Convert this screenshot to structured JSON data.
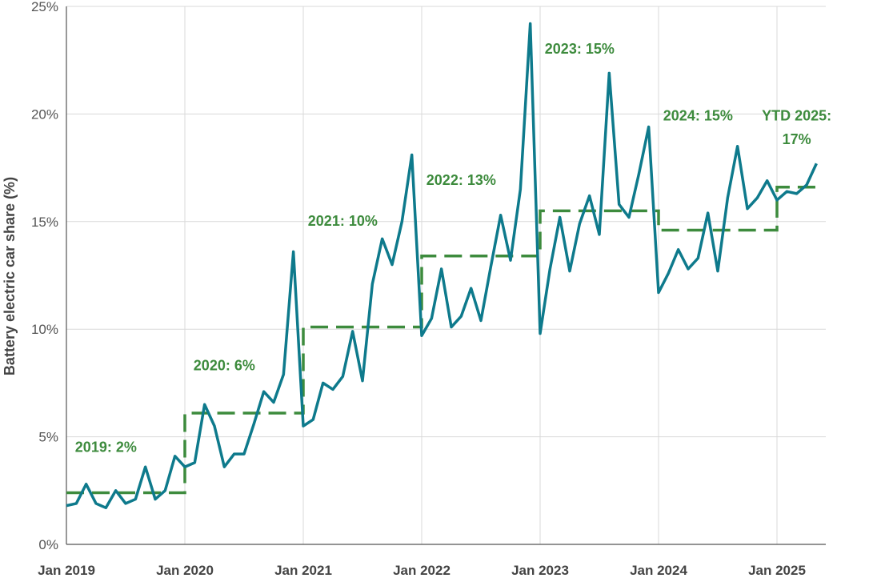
{
  "chart_data": {
    "type": "line",
    "ylabel": "Battery electric car share (%)",
    "xlabel": "",
    "ylim": [
      0,
      25
    ],
    "y_ticks": [
      "0%",
      "5%",
      "10%",
      "15%",
      "20%",
      "25%"
    ],
    "y_tick_values": [
      0,
      5,
      10,
      15,
      20,
      25
    ],
    "x_ticks": [
      "Jan 2019",
      "Jan 2020",
      "Jan 2021",
      "Jan 2022",
      "Jan 2023",
      "Jan 2024",
      "Jan 2025"
    ],
    "x_tick_dates": [
      "2019-01",
      "2020-01",
      "2021-01",
      "2022-01",
      "2023-01",
      "2024-01",
      "2025-01"
    ],
    "xlim": [
      "2019-01",
      "2025-05"
    ],
    "grid": true,
    "series": [
      {
        "color": "#0e7a8c",
        "style": "solid",
        "x": [
          "2019-01",
          "2019-02",
          "2019-03",
          "2019-04",
          "2019-05",
          "2019-06",
          "2019-07",
          "2019-08",
          "2019-09",
          "2019-10",
          "2019-11",
          "2019-12",
          "2020-01",
          "2020-02",
          "2020-03",
          "2020-04",
          "2020-05",
          "2020-06",
          "2020-07",
          "2020-08",
          "2020-09",
          "2020-10",
          "2020-11",
          "2020-12",
          "2021-01",
          "2021-02",
          "2021-03",
          "2021-04",
          "2021-05",
          "2021-06",
          "2021-07",
          "2021-08",
          "2021-09",
          "2021-10",
          "2021-11",
          "2021-12",
          "2022-01",
          "2022-02",
          "2022-03",
          "2022-04",
          "2022-05",
          "2022-06",
          "2022-07",
          "2022-08",
          "2022-09",
          "2022-10",
          "2022-11",
          "2022-12",
          "2023-01",
          "2023-02",
          "2023-03",
          "2023-04",
          "2023-05",
          "2023-06",
          "2023-07",
          "2023-08",
          "2023-09",
          "2023-10",
          "2023-11",
          "2023-12",
          "2024-01",
          "2024-02",
          "2024-03",
          "2024-04",
          "2024-05",
          "2024-06",
          "2024-07",
          "2024-08",
          "2024-09",
          "2024-10",
          "2024-11",
          "2024-12",
          "2025-01",
          "2025-02",
          "2025-03",
          "2025-04",
          "2025-05"
        ],
        "values": [
          1.8,
          1.9,
          2.8,
          1.9,
          1.7,
          2.5,
          1.9,
          2.1,
          3.6,
          2.1,
          2.5,
          4.1,
          3.6,
          3.8,
          6.5,
          5.5,
          3.6,
          4.2,
          4.2,
          5.6,
          7.1,
          6.6,
          7.9,
          13.6,
          5.5,
          5.8,
          7.5,
          7.2,
          7.8,
          9.9,
          7.6,
          12.1,
          14.2,
          13.0,
          15.0,
          18.1,
          9.7,
          10.5,
          12.8,
          10.1,
          10.6,
          11.9,
          10.4,
          12.9,
          15.3,
          13.2,
          16.5,
          24.2,
          9.8,
          12.8,
          15.2,
          12.7,
          14.9,
          16.2,
          14.4,
          21.9,
          15.8,
          15.2,
          17.2,
          19.4,
          11.7,
          12.6,
          13.7,
          12.8,
          13.3,
          15.4,
          12.7,
          16.1,
          18.5,
          15.6,
          16.1,
          16.9,
          16.0,
          16.4,
          16.3,
          16.7,
          17.7
        ]
      },
      {
        "color": "#3d8b3d",
        "style": "dashed",
        "x": [
          "2019-01",
          "2020-01",
          "2021-01",
          "2022-01",
          "2023-01",
          "2024-01",
          "2025-01"
        ],
        "values": [
          2.4,
          6.1,
          10.1,
          13.4,
          15.5,
          14.6,
          16.6
        ],
        "step_end": "2025-05"
      }
    ],
    "annotations": [
      {
        "text": "2019: 2%",
        "x": "2019-05",
        "y": 4.3
      },
      {
        "text": "2020: 6%",
        "x": "2020-05",
        "y": 8.1
      },
      {
        "text": "2021: 10%",
        "x": "2021-05",
        "y": 14.8
      },
      {
        "text": "2022: 13%",
        "x": "2022-05",
        "y": 16.7
      },
      {
        "text": "2023: 15%",
        "x": "2023-05",
        "y": 22.8
      },
      {
        "text": "2024: 15%",
        "x": "2024-05",
        "y": 19.7
      },
      {
        "text": "YTD 2025:",
        "x": "2025-03",
        "y": 19.7
      },
      {
        "text": "17%",
        "x": "2025-03",
        "y": 18.6
      }
    ]
  }
}
